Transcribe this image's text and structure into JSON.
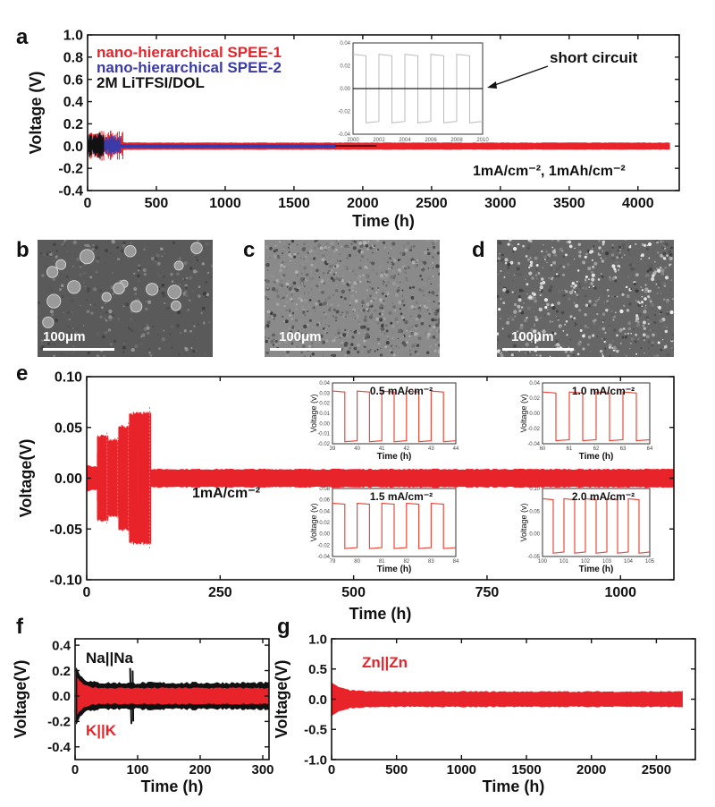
{
  "colors": {
    "spee1": "#e8232a",
    "spee2": "#3a3aa8",
    "lid": "#111111",
    "inset": "#e84c3d",
    "axis": "#111111"
  },
  "panel_letters": {
    "a": "a",
    "b": "b",
    "c": "c",
    "d": "d",
    "e": "e",
    "f": "f",
    "g": "g"
  },
  "sem": {
    "scale_label": "100μm"
  },
  "chart_data": [
    {
      "id": "a",
      "type": "line",
      "xlabel": "Time (h)",
      "ylabel": "Voltage (V)",
      "xlim": [
        0,
        4300
      ],
      "ylim": [
        -0.4,
        1.0
      ],
      "xticks": [
        0,
        500,
        1000,
        1500,
        2000,
        2500,
        3000,
        3500,
        4000
      ],
      "yticks": [
        -0.4,
        -0.2,
        0.0,
        0.2,
        0.4,
        0.6,
        0.8,
        1.0
      ],
      "ytick_labels": [
        "-0.4",
        "-0.2",
        "0.0",
        "0.2",
        "0.4",
        "0.6",
        "0.8",
        "1.0"
      ],
      "legend": [
        "nano-hierarchical SPEE-1",
        "nano-hierarchical SPEE-2",
        "2M LiTFSI/DOL"
      ],
      "legend_colors": [
        "#e8232a",
        "#3a3aa8",
        "#111111"
      ],
      "series": [
        {
          "name": "nano-hierarchical SPEE-1",
          "duration_h": 4230,
          "amplitude_V": 0.03,
          "initial_spike_V": 0.14
        },
        {
          "name": "nano-hierarchical SPEE-2",
          "duration_h": 1800,
          "amplitude_V": 0.02,
          "initial_spike_V": 0.1
        },
        {
          "name": "2M LiTFSI/DOL",
          "duration_h": 2100,
          "amplitude_V": 0.0,
          "initial_spike_V": 0.12
        }
      ],
      "annotation": "short circuit",
      "condition": "1mA/cm⁻², 1mAh/cm⁻²",
      "inset": {
        "xlim": [
          2000,
          2010
        ],
        "ylim": [
          -0.04,
          0.04
        ],
        "xticks": [
          2000,
          2002,
          2004,
          2006,
          2008,
          2010
        ],
        "xtick_labels": [
          "2000",
          "2002",
          "2004",
          "2006",
          "2008",
          "2010"
        ],
        "yticks": [
          -0.04,
          -0.02,
          0.0,
          0.02,
          0.04
        ],
        "ytick_labels": [
          "-0.04",
          "-0.02",
          "0.00",
          "0.02",
          "0.04"
        ]
      }
    },
    {
      "id": "e",
      "type": "line",
      "xlabel": "Time (h)",
      "ylabel": "Voltage(V)",
      "xlim": [
        0,
        1100
      ],
      "ylim": [
        -0.1,
        0.1
      ],
      "xticks": [
        0,
        250,
        500,
        750,
        1000
      ],
      "yticks": [
        -0.1,
        -0.05,
        0.0,
        0.05,
        0.1
      ],
      "ytick_labels": [
        "-0.10",
        "-0.05",
        "0.00",
        "0.05",
        "0.10"
      ],
      "condition": "1mA/cm⁻²",
      "rate_steps": [
        {
          "current": "0.5 mA/cm⁻²",
          "start_h": 20,
          "end_h": 40,
          "amplitude_V": 0.045
        },
        {
          "current": "1.0 mA/cm⁻²",
          "start_h": 40,
          "end_h": 60,
          "amplitude_V": 0.04
        },
        {
          "current": "1.5 mA/cm⁻²",
          "start_h": 60,
          "end_h": 80,
          "amplitude_V": 0.055
        },
        {
          "current": "2.0 mA/cm⁻²",
          "start_h": 80,
          "end_h": 120,
          "amplitude_V": 0.07
        }
      ],
      "insets": [
        {
          "label": "0.5 mA/cm⁻²",
          "xlim": [
            39,
            44
          ],
          "xticks": [
            39,
            40,
            41,
            42,
            43,
            44
          ],
          "yticks": [
            -0.02,
            -0.01,
            0.0,
            0.01,
            0.02,
            0.03,
            0.04
          ],
          "ytick_labels": [
            "-0.02",
            "-0.01",
            "0.00",
            "0.01",
            "0.02",
            "0.03",
            "0.04"
          ],
          "ylim": [
            -0.02,
            0.04
          ],
          "amplitude": 0.025,
          "xlabel": "Time (h)",
          "ylabel": "Voltage (v)"
        },
        {
          "label": "1.0 mA/cm⁻²",
          "xlim": [
            60,
            64
          ],
          "xticks": [
            60,
            61,
            62,
            63,
            64
          ],
          "yticks": [
            -0.04,
            -0.02,
            0.0,
            0.02,
            0.04
          ],
          "ytick_labels": [
            "-0.04",
            "-0.02",
            "0.00",
            "0.02",
            "0.04"
          ],
          "ylim": [
            -0.04,
            0.04
          ],
          "amplitude": 0.032,
          "xlabel": "Time (h)",
          "ylabel": "Voltage (v)"
        },
        {
          "label": "1.5 mA/cm⁻²",
          "xlim": [
            79,
            84
          ],
          "xticks": [
            79,
            80,
            81,
            82,
            83,
            84
          ],
          "yticks": [
            -0.04,
            -0.02,
            0.0,
            0.02,
            0.04,
            0.06,
            0.08
          ],
          "ytick_labels": [
            "-0.04",
            "-0.02",
            "0.00",
            "0.02",
            "0.04",
            "0.06",
            "0.08"
          ],
          "ylim": [
            -0.04,
            0.08
          ],
          "amplitude": 0.04,
          "xlabel": "Time (h)",
          "ylabel": "Voltage (v)"
        },
        {
          "label": "2.0 mA/cm⁻²",
          "xlim": [
            100,
            105
          ],
          "xticks": [
            100,
            101,
            102,
            103,
            104,
            105
          ],
          "yticks": [
            -0.05,
            0.0,
            0.05,
            0.1
          ],
          "ytick_labels": [
            "-0.05",
            "0.00",
            "0.05",
            "0.10"
          ],
          "ylim": [
            -0.05,
            0.1
          ],
          "amplitude": 0.06,
          "xlabel": "Time (h)",
          "ylabel": "Voltage (v)"
        }
      ]
    },
    {
      "id": "f",
      "type": "line",
      "xlabel": "Time (h)",
      "ylabel": "Voltage(V)",
      "xlim": [
        0,
        310
      ],
      "ylim": [
        -0.5,
        0.45
      ],
      "xticks": [
        0,
        100,
        200,
        300
      ],
      "yticks": [
        -0.4,
        -0.2,
        0.0,
        0.2,
        0.4
      ],
      "ytick_labels": [
        "-0.4",
        "-0.2",
        "0.0",
        "0.2",
        "0.4"
      ],
      "series": [
        {
          "name": "Na||Na",
          "color": "#111111",
          "amplitude_V": 0.12
        },
        {
          "name": "K||K",
          "color": "#e8232a",
          "amplitude_V": 0.08
        }
      ]
    },
    {
      "id": "g",
      "type": "line",
      "xlabel": "Time (h)",
      "ylabel": "Voltage(V)",
      "xlim": [
        0,
        2800
      ],
      "ylim": [
        -1.0,
        1.0
      ],
      "xticks": [
        0,
        500,
        1000,
        1500,
        2000,
        2500
      ],
      "yticks": [
        -1.0,
        -0.5,
        0.0,
        0.5,
        1.0
      ],
      "ytick_labels": [
        "-1.0",
        "-0.5",
        "0.0",
        "0.5",
        "1.0"
      ],
      "series": [
        {
          "name": "Zn||Zn",
          "color": "#e8232a",
          "amplitude_V": 0.12,
          "duration_h": 2700
        }
      ]
    }
  ]
}
